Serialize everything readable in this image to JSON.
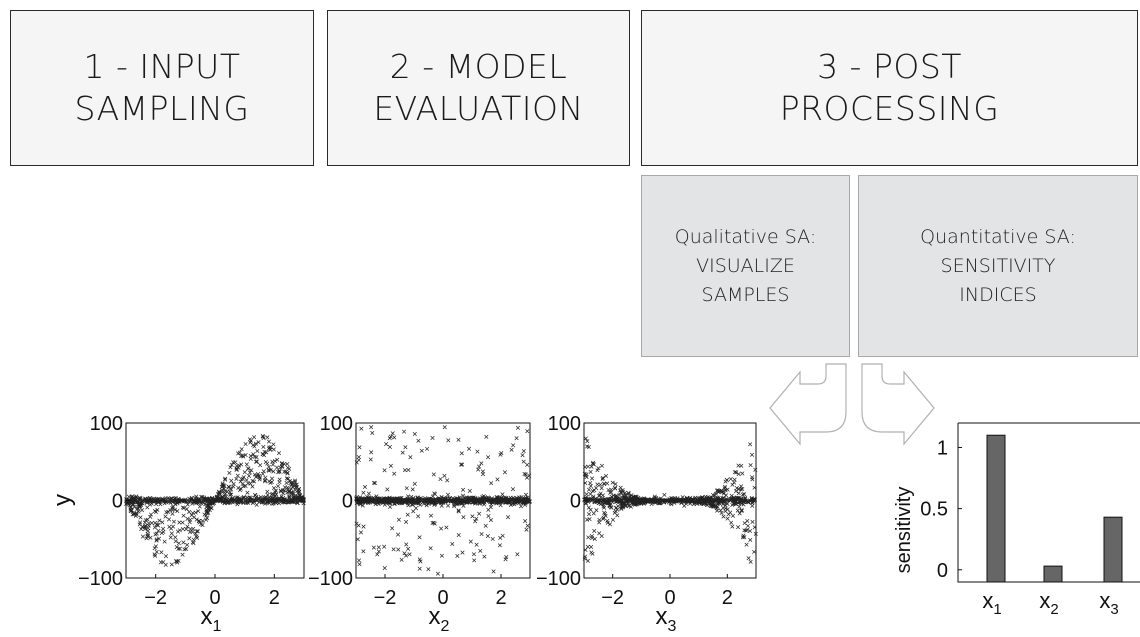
{
  "stages": [
    {
      "id": "stage-1",
      "label": "1 - INPUT\nSAMPLING"
    },
    {
      "id": "stage-2",
      "label": "2 - MODEL\nEVALUATION"
    },
    {
      "id": "stage-3",
      "label": "3 - POST\nPROCESSING"
    }
  ],
  "post_processing": {
    "qualitative": "Qualitative SA:\nVISUALIZE\nSAMPLES",
    "quantitative": "Quantitative SA:\nSENSITIVITY\nINDICES"
  },
  "chart_data": [
    {
      "type": "scatter",
      "title": "",
      "xlabel": "x1",
      "ylabel": "y",
      "xlim": [
        -3,
        3
      ],
      "ylim": [
        -100,
        100
      ],
      "xticks": [
        "-2",
        "0",
        "2"
      ],
      "yticks": [
        "100",
        "0",
        "-100"
      ],
      "pattern": "y negative hump for x<0, positive hump for x>0"
    },
    {
      "type": "scatter",
      "title": "",
      "xlabel": "x2",
      "ylabel": "",
      "xlim": [
        -3,
        3
      ],
      "ylim": [
        -100,
        100
      ],
      "xticks": [
        "-2",
        "0",
        "2"
      ],
      "yticks": [
        "100",
        "0",
        "-100"
      ],
      "pattern": "dense band near y=0 with scattered outliers"
    },
    {
      "type": "scatter",
      "title": "",
      "xlabel": "x3",
      "ylabel": "",
      "xlim": [
        -3,
        3
      ],
      "ylim": [
        -100,
        100
      ],
      "xticks": [
        "-2",
        "0",
        "2"
      ],
      "yticks": [
        "100",
        "0",
        "-100"
      ],
      "pattern": "funnel widening at both ends"
    },
    {
      "type": "bar",
      "title": "",
      "xlabel": "",
      "ylabel": "sensitivity",
      "categories": [
        "x1",
        "x2",
        "x3"
      ],
      "values": [
        1.1,
        0.03,
        0.43
      ],
      "yticks": [
        "1",
        "0.5",
        "0"
      ],
      "ylim": [
        -0.1,
        1.2
      ],
      "bar_color": "#666666"
    }
  ]
}
